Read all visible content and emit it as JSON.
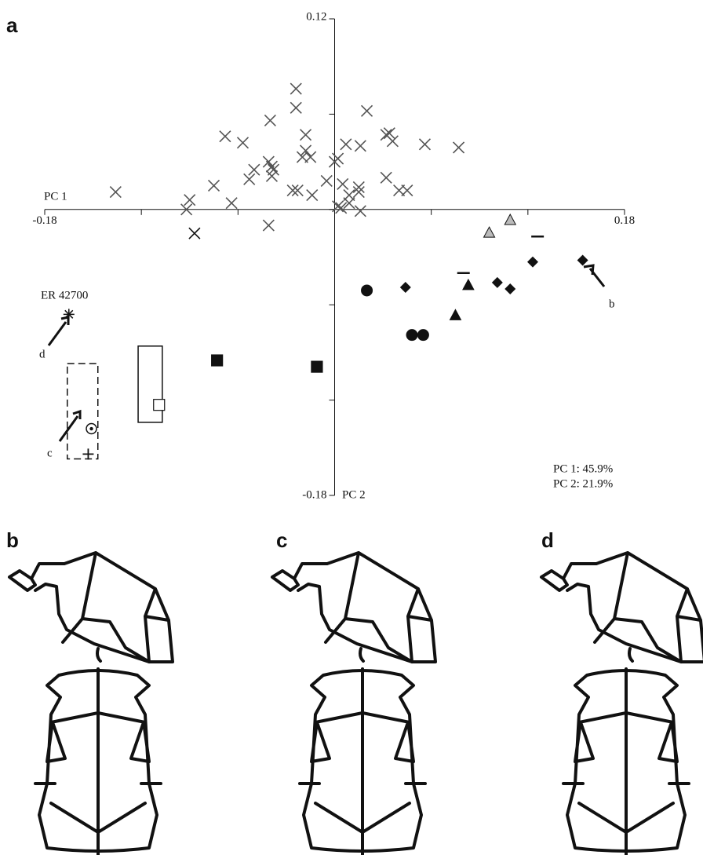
{
  "chart_data": {
    "type": "scatter",
    "xlim": [
      -0.18,
      0.18
    ],
    "ylim": [
      -0.18,
      0.12
    ],
    "xticks": [
      -0.18,
      -0.12,
      -0.06,
      0,
      0.06,
      0.12,
      0.18
    ],
    "yticks": [
      -0.18,
      -0.12,
      -0.06,
      0,
      0.06,
      0.12
    ],
    "x_label": "PC 1",
    "y_label": "PC 2",
    "series": [
      {
        "marker": "x",
        "color": "#555555",
        "x": [
          -0.136,
          -0.09,
          -0.092,
          -0.075,
          -0.064,
          -0.068,
          -0.057,
          -0.05,
          -0.053,
          -0.04,
          -0.041,
          -0.039,
          -0.039,
          -0.038,
          -0.024,
          -0.024,
          -0.018,
          -0.02,
          -0.018,
          -0.015,
          -0.026,
          -0.023,
          -0.014,
          -0.005,
          0.0,
          0.002,
          0.007,
          0.016,
          0.005,
          0.002,
          0.004,
          0.009,
          0.009,
          0.015,
          0.015,
          0.016,
          0.02,
          0.032,
          0.034,
          0.036,
          0.032,
          0.04,
          0.045,
          0.056,
          0.077,
          -0.041
        ],
        "values": [
          0.011,
          0.006,
          0.0,
          0.015,
          0.004,
          0.046,
          0.042,
          0.025,
          0.019,
          0.056,
          0.03,
          0.027,
          0.021,
          0.025,
          0.076,
          0.064,
          0.047,
          0.033,
          0.037,
          0.033,
          0.012,
          0.012,
          0.009,
          0.018,
          0.03,
          0.032,
          0.041,
          0.04,
          0.016,
          0.002,
          0.001,
          0.004,
          0.009,
          0.011,
          0.014,
          -0.001,
          0.062,
          0.047,
          0.048,
          0.043,
          0.02,
          0.012,
          0.012,
          0.041,
          0.039,
          -0.01
        ]
      },
      {
        "marker": "x",
        "color": "#111111",
        "x": [
          -0.087
        ],
        "values": [
          -0.015
        ]
      },
      {
        "marker": "triangle",
        "color": "#bbbbbb",
        "x": [
          0.096,
          0.109
        ],
        "values": [
          -0.015,
          -0.007
        ]
      },
      {
        "marker": "dash",
        "color": "#111111",
        "x": [
          0.126,
          0.08
        ],
        "values": [
          -0.017,
          -0.04
        ]
      },
      {
        "marker": "diamond",
        "color": "#111111",
        "x": [
          0.123,
          0.154,
          0.044,
          0.101,
          0.109
        ],
        "values": [
          -0.033,
          -0.032,
          -0.049,
          -0.046,
          -0.05
        ]
      },
      {
        "marker": "triangle",
        "color": "#111111",
        "x": [
          0.083,
          0.075
        ],
        "values": [
          -0.048,
          -0.067
        ]
      },
      {
        "marker": "circle",
        "color": "#111111",
        "x": [
          0.02,
          0.048,
          0.055
        ],
        "values": [
          -0.051,
          -0.079,
          -0.079
        ]
      },
      {
        "marker": "square",
        "color": "#111111",
        "x": [
          -0.073,
          -0.011
        ],
        "values": [
          -0.095,
          -0.099
        ]
      },
      {
        "marker": "square",
        "color": "#ffffff",
        "x": [
          -0.109
        ],
        "values": [
          -0.123
        ]
      },
      {
        "marker": "dotcircle",
        "color": "#ffffff",
        "x": [
          -0.151
        ],
        "values": [
          -0.138
        ]
      },
      {
        "marker": "plus",
        "color": "#111111",
        "x": [
          -0.153
        ],
        "values": [
          -0.154
        ]
      },
      {
        "marker": "star",
        "color": "#111111",
        "x": [
          -0.165
        ],
        "values": [
          -0.066
        ]
      }
    ],
    "boxes": [
      {
        "x": [
          -0.122,
          -0.107
        ],
        "y": [
          -0.086,
          -0.134
        ],
        "dashed": false
      },
      {
        "x": [
          -0.166,
          -0.147
        ],
        "y": [
          -0.097,
          -0.157
        ],
        "dashed": true
      }
    ],
    "specimen_label": "ER 42700",
    "arrow_labels": [
      "b",
      "c",
      "d"
    ],
    "variance": [
      "PC 1: 45.9%",
      "PC 2: 21.9%"
    ]
  },
  "panels": [
    "a",
    "b",
    "c",
    "d"
  ]
}
